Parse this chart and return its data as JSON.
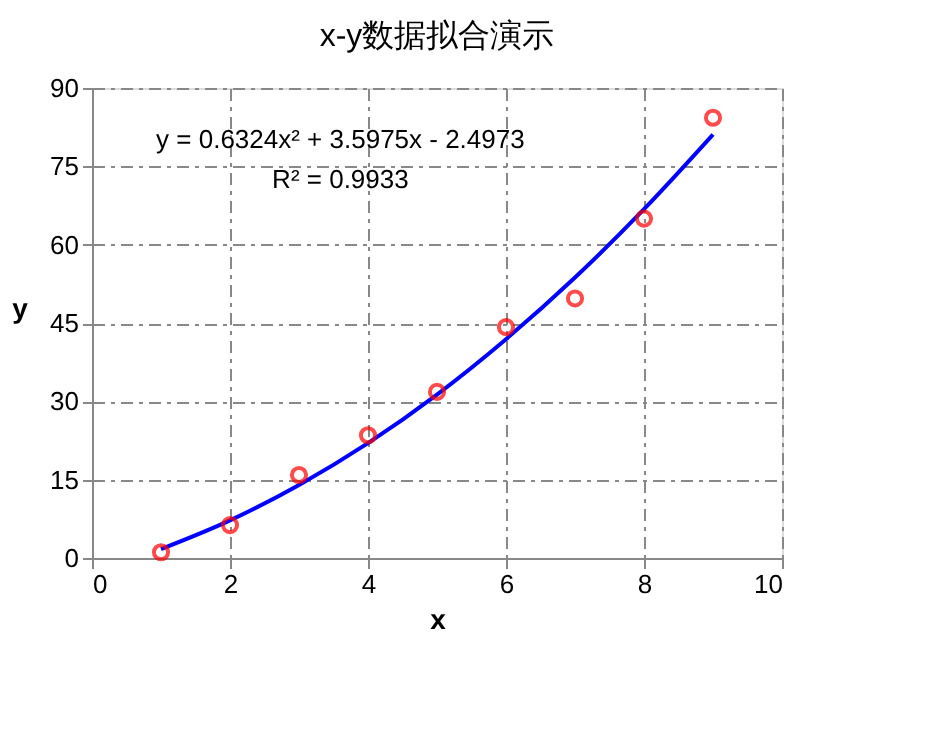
{
  "chart_data": {
    "type": "scatter",
    "title": "x-y数据拟合演示",
    "xlabel": "x",
    "ylabel": "y",
    "x": [
      1,
      2,
      3,
      4,
      5,
      6,
      7,
      8,
      9
    ],
    "series": [
      {
        "color": "#ff0000",
        "marker": "circle",
        "values": [
          1.1,
          6.3,
          15.9,
          23.5,
          31.8,
          44.2,
          49.7,
          65.0,
          84.3
        ]
      },
      {
        "type": "line",
        "color": "#0000ff",
        "marker": "none",
        "line_style": "solid",
        "x": [
          1,
          2,
          3,
          4,
          5,
          6,
          7,
          8,
          9
        ],
        "values": [
          1.7,
          7.2,
          14.0,
          22.0,
          31.3,
          41.9,
          53.7,
          66.8,
          81.1
        ]
      }
    ],
    "annotations": [
      "y = 0.6324x² + 3.5975x - 2.4973",
      "R² = 0.9933"
    ],
    "xlim": [
      0,
      10
    ],
    "xticks": [
      0,
      2,
      4,
      6,
      8,
      10
    ],
    "ylim": [
      0,
      90
    ],
    "yticks": [
      0,
      15,
      30,
      45,
      60,
      75,
      90
    ],
    "grid": true,
    "legend": false
  }
}
